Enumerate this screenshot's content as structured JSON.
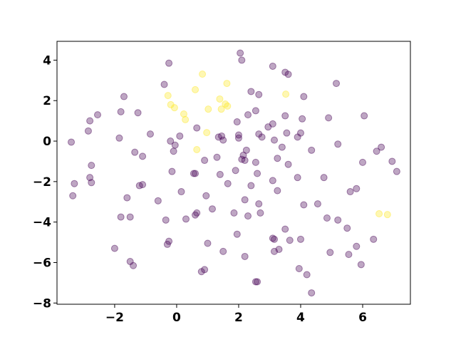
{
  "chart_data": {
    "type": "scatter",
    "xlim": [
      -3.86,
      7.54
    ],
    "ylim": [
      -8.06,
      4.93
    ],
    "xticks": [
      {
        "value": -2,
        "label": "−2"
      },
      0,
      2,
      4,
      6
    ],
    "yticks": [
      {
        "value": -8,
        "label": "−8"
      },
      {
        "value": -6,
        "label": "−6"
      },
      {
        "value": -4,
        "label": "−4"
      },
      {
        "value": -2,
        "label": "−2"
      },
      0,
      2,
      4
    ],
    "series": [
      {
        "color": "#440154",
        "x": [
          -3.4,
          -3.3,
          -3.35,
          -2.85,
          -2.8,
          -2.55,
          -2.75,
          -2.8,
          -2.75,
          -1.7,
          -1.8,
          -1.85,
          -1.35,
          -1.1,
          -1.25,
          -0.85,
          -1.6,
          -1.2,
          -1.1,
          -1.5,
          -1.8,
          -0.6,
          -2.0,
          -1.5,
          -1.4,
          -0.35,
          -0.25,
          -0.3,
          -0.25,
          -0.4,
          -0.2,
          -0.1,
          -0.05,
          0.1,
          -0.15,
          0.15,
          0.3,
          0.6,
          0.65,
          0.6,
          0.55,
          0.65,
          0.9,
          0.95,
          1.15,
          1.0,
          0.8,
          0.9,
          1.3,
          1.35,
          1.45,
          1.5,
          1.4,
          1.65,
          1.5,
          1.85,
          1.9,
          1.95,
          2.05,
          2.1,
          2.0,
          2.0,
          2.1,
          2.2,
          2.15,
          2.25,
          2.3,
          2.4,
          2.55,
          2.65,
          2.4,
          2.2,
          2.3,
          1.95,
          2.2,
          2.55,
          2.6,
          2.6,
          2.65,
          2.7,
          2.65,
          2.75,
          2.55,
          2.95,
          3.1,
          3.1,
          3.25,
          3.1,
          3.15,
          3.25,
          3.4,
          3.6,
          3.3,
          3.1,
          3.15,
          3.15,
          3.5,
          3.65,
          3.5,
          3.6,
          3.5,
          3.55,
          3.9,
          4.0,
          4.1,
          4.05,
          3.9,
          4.1,
          4.0,
          3.95,
          4.2,
          4.35,
          4.35,
          4.55,
          4.75,
          4.85,
          4.95,
          4.9,
          5.15,
          5.2,
          5.2,
          5.5,
          5.55,
          5.6,
          5.8,
          5.8,
          5.95,
          6.0,
          6.05,
          6.35,
          6.45,
          6.6,
          6.95,
          7.1
        ],
        "values": [
          -0.05,
          -2.1,
          -2.7,
          0.5,
          1.0,
          1.3,
          -1.2,
          -1.8,
          -2.05,
          2.2,
          1.45,
          0.15,
          -0.55,
          -0.75,
          1.4,
          0.35,
          -2.8,
          -2.2,
          -2.15,
          -3.75,
          -3.75,
          -2.95,
          -5.3,
          -5.95,
          -6.15,
          -3.9,
          -4.95,
          -5.1,
          3.85,
          2.8,
          0.0,
          -0.5,
          -0.2,
          0.25,
          -1.5,
          -2.5,
          -3.85,
          -3.65,
          -3.55,
          -1.6,
          -1.6,
          0.65,
          -0.95,
          -2.7,
          -3.35,
          -5.05,
          -6.45,
          -6.35,
          -0.8,
          0.2,
          0.25,
          0.05,
          -1.65,
          -2.1,
          -5.45,
          -3.55,
          -1.45,
          0.95,
          4.35,
          4.0,
          0.3,
          0.15,
          -0.9,
          -0.95,
          -0.7,
          -0.45,
          1.3,
          2.45,
          1.5,
          2.3,
          -2.2,
          -2.9,
          -3.7,
          -4.6,
          -5.7,
          -6.95,
          -6.95,
          -1.6,
          -3.1,
          -3.55,
          0.35,
          0.2,
          -1.05,
          0.7,
          0.85,
          -1.95,
          -2.45,
          3.7,
          0.05,
          -0.85,
          -0.3,
          -1.15,
          -5.35,
          -4.8,
          -4.85,
          -5.45,
          -4.35,
          -4.9,
          3.4,
          3.3,
          1.25,
          0.4,
          0.2,
          0.4,
          2.2,
          1.1,
          -1.8,
          -3.15,
          -4.85,
          -6.3,
          -6.6,
          -7.5,
          -0.45,
          -3.1,
          -1.8,
          -3.8,
          -5.5,
          1.15,
          2.85,
          -0.15,
          -3.9,
          -4.3,
          -5.6,
          -2.5,
          -2.35,
          -5.2,
          -6.1,
          -1.05,
          1.25,
          -4.85,
          -0.5,
          -0.3,
          -1.0,
          -1.5
        ]
      },
      {
        "color": "#fde725",
        "x": [
          0.83,
          -0.28,
          0.6,
          1.62,
          -0.19,
          -0.07,
          1.39,
          1.02,
          1.44,
          1.57,
          1.64,
          0.23,
          0.28,
          0.97,
          0.65,
          3.52,
          6.53,
          6.8
        ],
        "values": [
          3.31,
          2.25,
          2.54,
          2.85,
          1.8,
          1.65,
          2.08,
          1.58,
          1.58,
          1.83,
          1.73,
          1.34,
          1.06,
          0.42,
          -0.42,
          2.32,
          -3.59,
          -3.63
        ]
      }
    ]
  }
}
